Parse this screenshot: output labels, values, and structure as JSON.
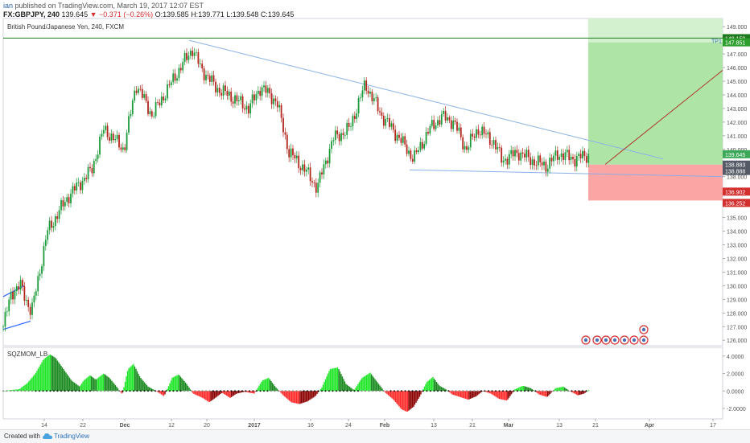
{
  "header": {
    "user": "ian",
    "published": "published on TradingView.com, March 19, 2017 12:07 EST",
    "symbol": "FX:GBPJPY, 240",
    "last": "139.645",
    "change_arrow": "▼",
    "change": "−0.371 (−0.26%)",
    "o": "O:139.585",
    "h": "H:139.771",
    "l": "L:139.548",
    "c": "C:139.645"
  },
  "chart_title": "British Pound/Japanese Yen, 240, FXCM",
  "indicator_label": "SQZMOM_LB",
  "footer": {
    "created": "Created with",
    "brand": "TradingView"
  },
  "colors": {
    "up": "#1c9b3a",
    "down": "#b3261e",
    "target_zone": "#a5e29d",
    "stop_zone": "#fca5a5",
    "trend_line": "#8ab0e6",
    "hline": "#1f7a1f"
  },
  "chart_data": {
    "type": "candlestick",
    "y_axis_labels": [
      "149.000",
      "148.000",
      "147.000",
      "146.000",
      "145.000",
      "144.000",
      "143.000",
      "142.000",
      "141.000",
      "140.000",
      "139.000",
      "138.000",
      "137.000",
      "136.000",
      "135.000",
      "134.000",
      "133.000",
      "132.000",
      "131.000",
      "130.000",
      "129.000",
      "128.000",
      "127.000",
      "126.000"
    ],
    "y_range": [
      125.6,
      149.6
    ],
    "x_axis_labels": [
      "14",
      "22",
      "Dec",
      "12",
      "20",
      "2017",
      "16",
      "24",
      "Feb",
      "13",
      "21",
      "Mar",
      "13",
      "21",
      "Apr",
      "17"
    ],
    "price_tags": [
      {
        "text": "148.159",
        "kind": "level"
      },
      {
        "text": "147.851",
        "kind": "target"
      },
      {
        "text": "139.645",
        "kind": "last"
      },
      {
        "text": "138.883",
        "kind": "entry"
      },
      {
        "text": "138.888",
        "kind": "entry"
      },
      {
        "text": "136.902",
        "kind": "stop"
      },
      {
        "text": "136.252",
        "kind": "stop"
      }
    ],
    "annotation": "TP1",
    "osc_axis_labels": [
      "4.0000",
      "2.0000",
      "0.0000",
      "-2.0000"
    ],
    "osc_range": [
      -3.2,
      5.0
    ],
    "price_path": [
      [
        0,
        127.0
      ],
      [
        10,
        129.5
      ],
      [
        22,
        130.0
      ],
      [
        35,
        128.0
      ],
      [
        55,
        134.0
      ],
      [
        80,
        136.5
      ],
      [
        110,
        138.5
      ],
      [
        125,
        141.5
      ],
      [
        150,
        140.0
      ],
      [
        165,
        144.8
      ],
      [
        185,
        142.5
      ],
      [
        200,
        144.0
      ],
      [
        215,
        145.5
      ],
      [
        235,
        147.4
      ],
      [
        245,
        146.0
      ],
      [
        265,
        144.5
      ],
      [
        285,
        143.8
      ],
      [
        305,
        143.0
      ],
      [
        320,
        144.6
      ],
      [
        340,
        143.5
      ],
      [
        355,
        139.8
      ],
      [
        375,
        138.5
      ],
      [
        390,
        137.2
      ],
      [
        410,
        140.8
      ],
      [
        430,
        141.5
      ],
      [
        450,
        144.8
      ],
      [
        470,
        142.5
      ],
      [
        490,
        141.0
      ],
      [
        510,
        139.3
      ],
      [
        530,
        141.5
      ],
      [
        545,
        142.4
      ],
      [
        560,
        142.0
      ],
      [
        575,
        140.0
      ],
      [
        590,
        141.5
      ],
      [
        610,
        140.5
      ],
      [
        620,
        139.2
      ],
      [
        640,
        139.8
      ],
      [
        660,
        139.1
      ],
      [
        675,
        138.8
      ],
      [
        690,
        139.7
      ],
      [
        710,
        139.3
      ],
      [
        730,
        139.65
      ]
    ],
    "momentum": [
      [
        0,
        0.0
      ],
      [
        10,
        0.1
      ],
      [
        20,
        0.2
      ],
      [
        30,
        0.9
      ],
      [
        40,
        2.0
      ],
      [
        50,
        3.6
      ],
      [
        58,
        4.2
      ],
      [
        65,
        3.8
      ],
      [
        75,
        2.5
      ],
      [
        85,
        1.2
      ],
      [
        95,
        0.5
      ],
      [
        100,
        1.2
      ],
      [
        108,
        1.8
      ],
      [
        115,
        1.3
      ],
      [
        125,
        2.0
      ],
      [
        132,
        1.5
      ],
      [
        140,
        0.6
      ],
      [
        148,
        -0.4
      ],
      [
        155,
        2.5
      ],
      [
        162,
        3.1
      ],
      [
        170,
        1.6
      ],
      [
        180,
        0.5
      ],
      [
        190,
        0.0
      ],
      [
        200,
        -0.6
      ],
      [
        210,
        1.5
      ],
      [
        218,
        1.9
      ],
      [
        228,
        0.8
      ],
      [
        236,
        -0.3
      ],
      [
        248,
        -0.8
      ],
      [
        256,
        -1.3
      ],
      [
        265,
        -0.7
      ],
      [
        272,
        -0.2
      ],
      [
        282,
        -0.8
      ],
      [
        290,
        -0.3
      ],
      [
        300,
        -0.1
      ],
      [
        312,
        -0.3
      ],
      [
        322,
        1.2
      ],
      [
        330,
        1.5
      ],
      [
        338,
        0.5
      ],
      [
        348,
        -0.5
      ],
      [
        358,
        -1.3
      ],
      [
        368,
        -1.5
      ],
      [
        378,
        -1.2
      ],
      [
        388,
        -0.6
      ],
      [
        396,
        0.4
      ],
      [
        406,
        2.5
      ],
      [
        416,
        2.7
      ],
      [
        426,
        0.8
      ],
      [
        436,
        0.1
      ],
      [
        446,
        1.5
      ],
      [
        456,
        2.1
      ],
      [
        465,
        1.0
      ],
      [
        475,
        -0.2
      ],
      [
        485,
        -1.0
      ],
      [
        495,
        -2.1
      ],
      [
        502,
        -2.4
      ],
      [
        510,
        -1.8
      ],
      [
        518,
        -0.6
      ],
      [
        526,
        1.0
      ],
      [
        534,
        1.6
      ],
      [
        542,
        0.6
      ],
      [
        550,
        0.2
      ],
      [
        558,
        -0.4
      ],
      [
        568,
        -0.7
      ],
      [
        578,
        -1.0
      ],
      [
        588,
        -0.6
      ],
      [
        596,
        0.0
      ],
      [
        606,
        -0.3
      ],
      [
        616,
        -0.9
      ],
      [
        626,
        -1.1
      ],
      [
        636,
        0.2
      ],
      [
        646,
        0.6
      ],
      [
        656,
        0.3
      ],
      [
        666,
        -0.4
      ],
      [
        676,
        -0.7
      ],
      [
        686,
        0.3
      ],
      [
        696,
        0.5
      ],
      [
        704,
        0.0
      ],
      [
        714,
        -0.5
      ],
      [
        722,
        -0.3
      ],
      [
        730,
        0.3
      ]
    ]
  }
}
